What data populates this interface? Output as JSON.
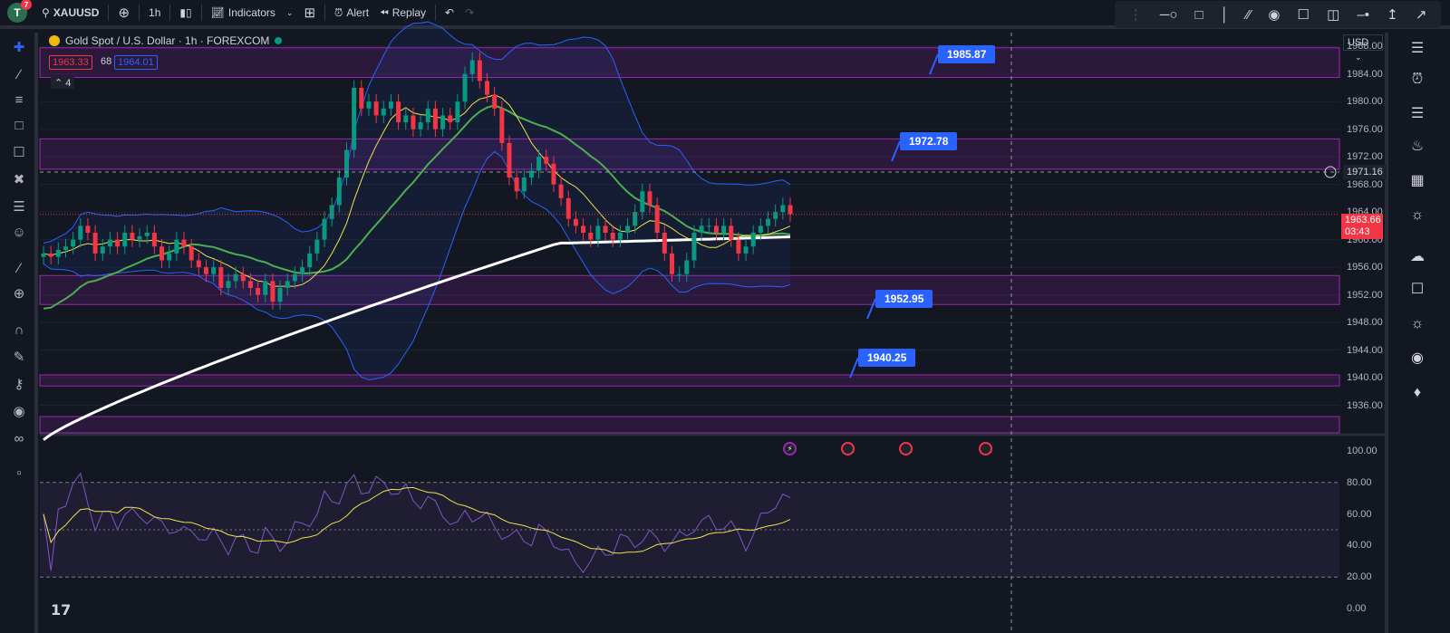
{
  "topbar": {
    "avatar_letter": "T",
    "avatar_badge": "7",
    "symbol": "XAUUSD",
    "interval": "1h",
    "indicators_label": "Indicators",
    "alert_label": "Alert",
    "replay_label": "Replay"
  },
  "legend": {
    "title": "Gold Spot / U.S. Dollar · 1h · FOREXCOM",
    "bid": "1963.33",
    "spread": "68",
    "ask": "1964.01",
    "collapsed_count": "4"
  },
  "price_axis": {
    "currency": "USD",
    "labels": [
      "1988.00",
      "1984.00",
      "1980.00",
      "1976.00",
      "1972.00",
      "1968.00",
      "1964.00",
      "1960.00",
      "1956.00",
      "1952.00",
      "1948.00",
      "1944.00",
      "1940.00",
      "1936.00"
    ],
    "crosshair_price": "1971.16",
    "last_price": "1963.66",
    "countdown": "03:43"
  },
  "rsi_axis": {
    "labels": [
      "100.00",
      "80.00",
      "60.00",
      "40.00",
      "20.00",
      "0.00"
    ]
  },
  "callouts": {
    "c1": "1985.87",
    "c2": "1972.78",
    "c3": "1952.95",
    "c4": "1940.25"
  },
  "colors": {
    "bg": "#131722",
    "zone": "#9c27b0",
    "up": "#089981",
    "down": "#f23645",
    "bb": "#2962ff",
    "ma_fast": "#f0e24a",
    "ma_mid": "#4caf50",
    "ma_slow": "#ffffff",
    "rsi": "#7e57c2"
  },
  "chart_data": {
    "type": "candlestick",
    "ylim": [
      1932,
      1990
    ],
    "zones": [
      [
        1983.5,
        1987.8
      ],
      [
        1970.2,
        1974.6
      ],
      [
        1950.6,
        1954.8
      ],
      [
        1938.8,
        1940.4
      ]
    ],
    "close": [
      1958,
      1957.5,
      1958.5,
      1959,
      1960,
      1962,
      1961,
      1958,
      1959,
      1960,
      1959,
      1961,
      1960,
      1960.5,
      1961,
      1959,
      1957,
      1958,
      1960,
      1959,
      1957,
      1956,
      1955,
      1956,
      1953,
      1954,
      1955,
      1954,
      1953,
      1952,
      1954,
      1951,
      1953,
      1954,
      1955,
      1956,
      1958,
      1960,
      1963,
      1965,
      1969,
      1973,
      1982,
      1979,
      1980,
      1978,
      1979,
      1980,
      1977,
      1978,
      1976,
      1977,
      1979,
      1976,
      1978,
      1977,
      1980,
      1984,
      1986,
      1983,
      1981,
      1979,
      1974,
      1969,
      1967,
      1969,
      1970,
      1972,
      1971,
      1968,
      1966,
      1963,
      1962,
      1961,
      1960,
      1962,
      1961,
      1960,
      1961,
      1962,
      1964,
      1967,
      1965,
      1961,
      1958,
      1955,
      1955,
      1957,
      1961,
      1962,
      1962,
      1961,
      1962,
      1960,
      1958,
      1959,
      1961,
      1962,
      1963,
      1964,
      1965,
      1963.7
    ],
    "rsi_ylim": [
      0,
      100
    ],
    "rsi_levels": [
      80,
      50,
      20
    ]
  }
}
